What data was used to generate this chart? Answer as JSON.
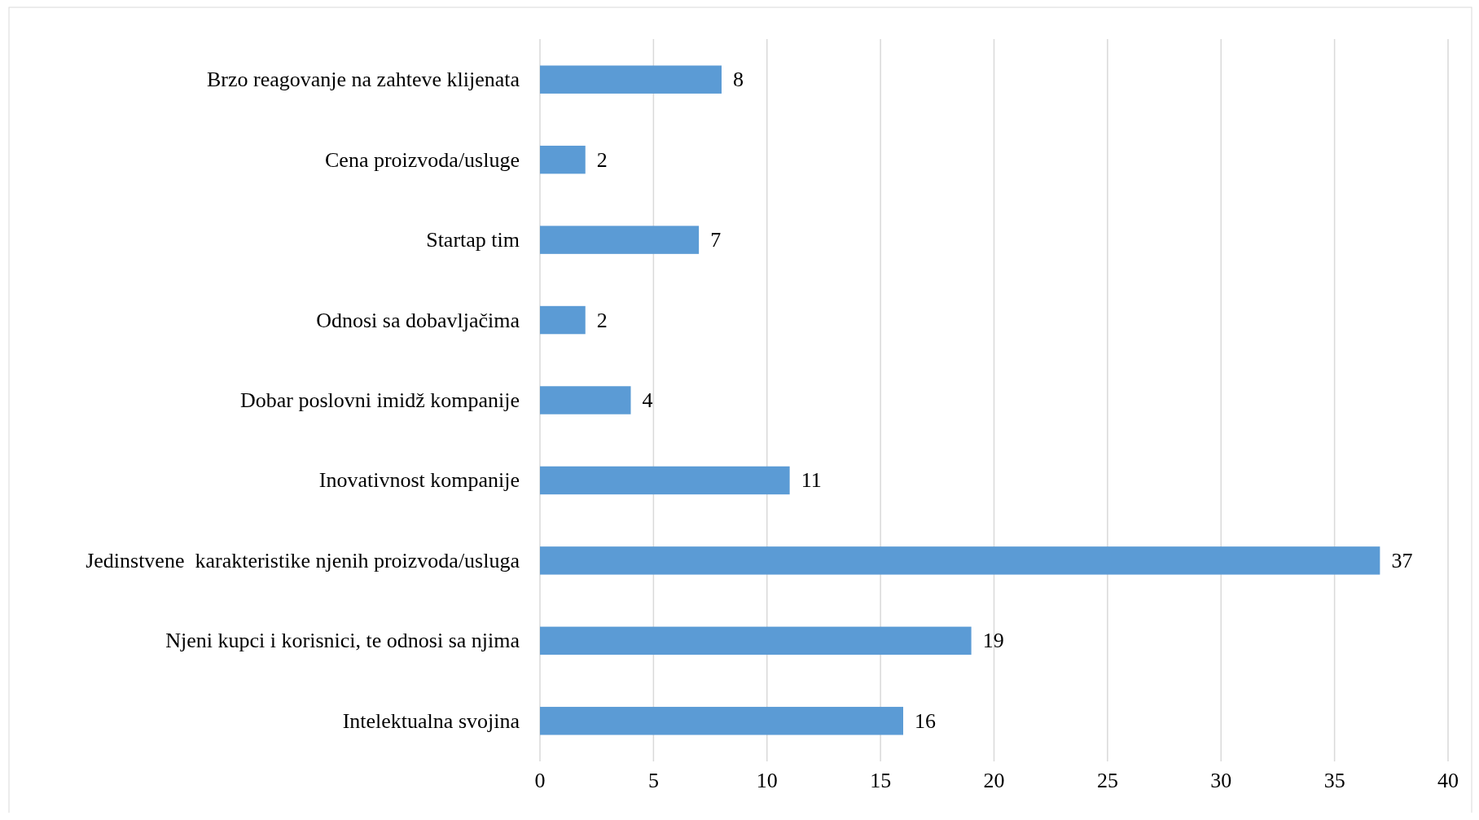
{
  "chart_data": {
    "type": "bar",
    "orientation": "horizontal",
    "categories": [
      "Brzo reagovanje na zahteve klijenata",
      "Cena proizvoda/usluge",
      "Startap tim",
      "Odnosi sa dobavljačima",
      "Dobar poslovni imidž kompanije",
      "Inovativnost kompanije",
      "Jedinstvene  karakteristike njenih proizvoda/usluga",
      "Njeni kupci i korisnici, te odnosi sa njima",
      "Intelektualna svojina"
    ],
    "values": [
      8,
      2,
      7,
      2,
      4,
      11,
      37,
      19,
      16
    ],
    "color": "#5b9bd5",
    "xlim": [
      0,
      40
    ],
    "xticks": [
      0,
      5,
      10,
      15,
      20,
      25,
      30,
      35,
      40
    ],
    "grid": "x",
    "data_labels": true
  }
}
